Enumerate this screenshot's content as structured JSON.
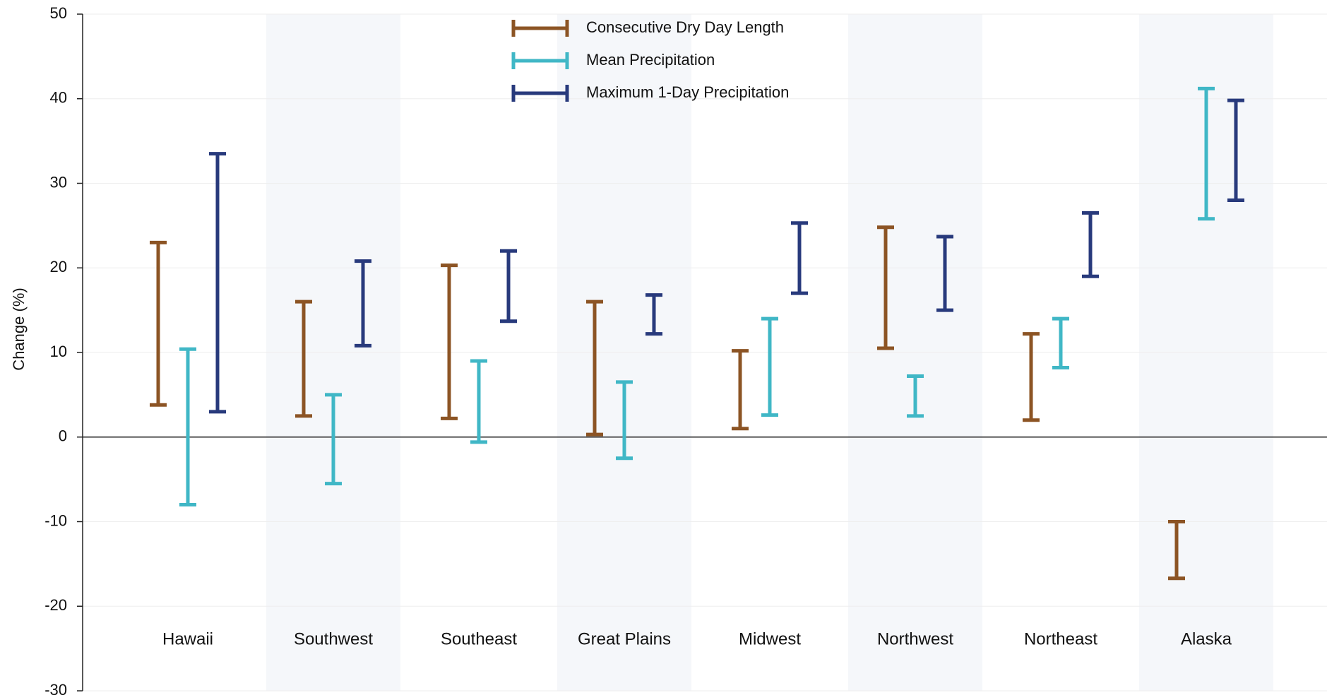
{
  "chart_data": {
    "type": "range",
    "y_label": "Change (%)",
    "categories": [
      "Hawaii",
      "Southwest",
      "Southeast",
      "Great Plains",
      "Midwest",
      "Northwest",
      "Northeast",
      "Alaska"
    ],
    "series": [
      {
        "name": "Consecutive Dry Day Length",
        "color": "#8c5424",
        "low": [
          3.8,
          2.5,
          2.2,
          0.3,
          1,
          10.5,
          2,
          -16.7
        ],
        "high": [
          23,
          16,
          20.3,
          16,
          10.2,
          24.8,
          12.2,
          -10
        ]
      },
      {
        "name": "Mean Precipitation",
        "color": "#40b7c6",
        "low": [
          -8,
          -5.5,
          -0.6,
          -2.5,
          2.6,
          2.5,
          8.2,
          25.8
        ],
        "high": [
          10.4,
          5,
          9,
          6.5,
          14,
          7.2,
          14,
          41.2
        ]
      },
      {
        "name": "Maximum 1-Day Precipitation",
        "color": "#283a7c",
        "low": [
          3,
          10.8,
          13.7,
          12.2,
          17,
          15,
          19,
          28
        ],
        "high": [
          33.5,
          20.8,
          22,
          16.8,
          25.3,
          23.7,
          26.5,
          39.8
        ]
      }
    ],
    "ylim": [
      -30,
      50
    ],
    "yticks": [
      -30,
      -20,
      -10,
      0,
      10,
      20,
      30,
      40,
      50
    ],
    "grid": true
  }
}
